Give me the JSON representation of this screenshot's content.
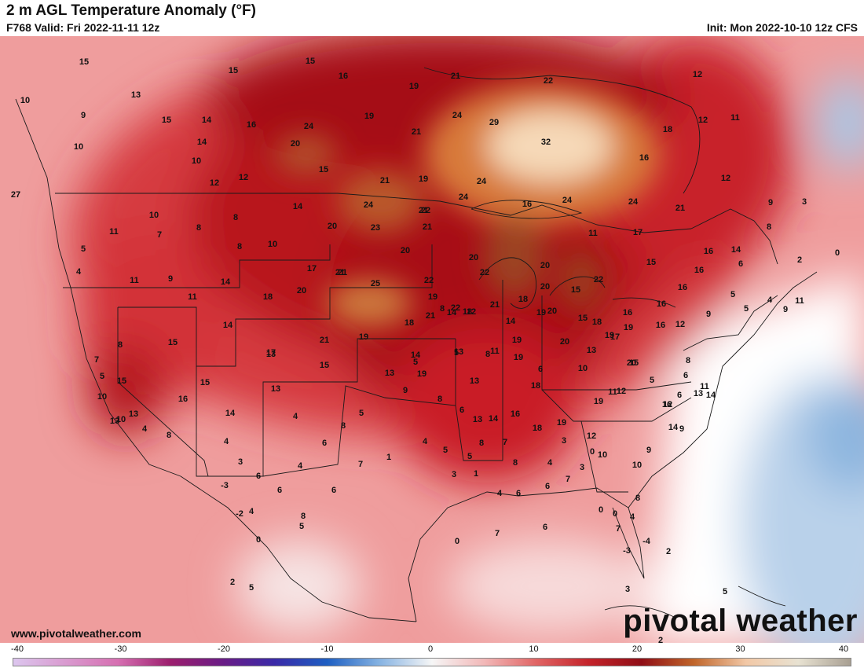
{
  "header": {
    "title": "2 m AGL Temperature Anomaly (°F)",
    "valid": "F768 Valid: Fri 2022-11-11 12z",
    "init": "Init: Mon 2022-10-10 12z CFS"
  },
  "footer": {
    "site": "www.pivotalweather.com",
    "watermark": "pivotal weather"
  },
  "colorbar": {
    "min": -40,
    "max": 40,
    "tick_labels": [
      "-40",
      "-30",
      "-20",
      "-10",
      "0",
      "10",
      "20",
      "30",
      "40"
    ],
    "stops": [
      {
        "value": -40,
        "color": "#dcc6ee"
      },
      {
        "value": -30,
        "color": "#d66fb1"
      },
      {
        "value": -25,
        "color": "#9c1f6e"
      },
      {
        "value": -20,
        "color": "#6a1c86"
      },
      {
        "value": -15,
        "color": "#3a2aa8"
      },
      {
        "value": -10,
        "color": "#1e5fc2"
      },
      {
        "value": -5,
        "color": "#86b3e2"
      },
      {
        "value": 0,
        "color": "#f6f6f6"
      },
      {
        "value": 5,
        "color": "#f2b8b8"
      },
      {
        "value": 10,
        "color": "#e06464"
      },
      {
        "value": 15,
        "color": "#c4232a"
      },
      {
        "value": 20,
        "color": "#8f0e16"
      },
      {
        "value": 25,
        "color": "#c0652a"
      },
      {
        "value": 30,
        "color": "#f2c8a6"
      },
      {
        "value": 35,
        "color": "#e8e2d2"
      },
      {
        "value": 40,
        "color": "#a89f92"
      }
    ]
  },
  "map_values": [
    "15",
    "15",
    "15",
    "16",
    "21",
    "19",
    "22",
    "12",
    "13",
    "10",
    "9",
    "15",
    "14",
    "16",
    "19",
    "24",
    "24",
    "29",
    "32",
    "12",
    "11",
    "10",
    "14",
    "20",
    "21",
    "18",
    "16",
    "27",
    "10",
    "12",
    "12",
    "15",
    "19",
    "21",
    "24",
    "12",
    "24",
    "21",
    "24",
    "16",
    "24",
    "21",
    "9",
    "3",
    "10",
    "8",
    "14",
    "24",
    "22",
    "20",
    "23",
    "21",
    "11",
    "17",
    "11",
    "7",
    "8",
    "8",
    "10",
    "20",
    "21",
    "20",
    "16",
    "14",
    "5",
    "2",
    "0",
    "4",
    "9",
    "14",
    "17",
    "21",
    "22",
    "20",
    "22",
    "15",
    "16",
    "6",
    "8",
    "11",
    "11",
    "18",
    "20",
    "25",
    "22",
    "19",
    "20",
    "15",
    "16",
    "5",
    "5",
    "4",
    "9",
    "11",
    "18",
    "20",
    "21",
    "18",
    "18",
    "21",
    "22",
    "19",
    "18",
    "16",
    "16",
    "12",
    "9",
    "16",
    "19",
    "14",
    "19",
    "21",
    "20",
    "19",
    "19",
    "15",
    "12",
    "8",
    "11",
    "13",
    "14",
    "17",
    "15",
    "20",
    "17",
    "13",
    "10",
    "6",
    "5",
    "5",
    "8",
    "14",
    "13",
    "19",
    "13",
    "19",
    "18",
    "15",
    "8",
    "5",
    "6",
    "13",
    "11",
    "6",
    "12",
    "11",
    "12",
    "19",
    "16",
    "14",
    "14",
    "9",
    "9",
    "10",
    "12",
    "19",
    "18",
    "16",
    "14",
    "13",
    "6",
    "8",
    "9",
    "5",
    "8",
    "6",
    "4",
    "13",
    "15",
    "16",
    "14",
    "4",
    "3",
    "6",
    "8",
    "4",
    "10",
    "10",
    "13",
    "15",
    "13",
    "5",
    "7",
    "8",
    "15",
    "14",
    "13",
    "4",
    "6",
    "8",
    "6",
    "7",
    "1",
    "4",
    "5",
    "5",
    "3",
    "1",
    "4",
    "6",
    "6",
    "7",
    "3",
    "10",
    "8",
    "4",
    "0",
    "0",
    "0",
    "3",
    "4",
    "8",
    "7",
    "8",
    "0",
    "7",
    "6",
    "7",
    "-4",
    "-3",
    "2",
    "3",
    "2",
    "5",
    "4",
    "-2",
    "-3",
    "2",
    "5",
    "0",
    "5"
  ]
}
